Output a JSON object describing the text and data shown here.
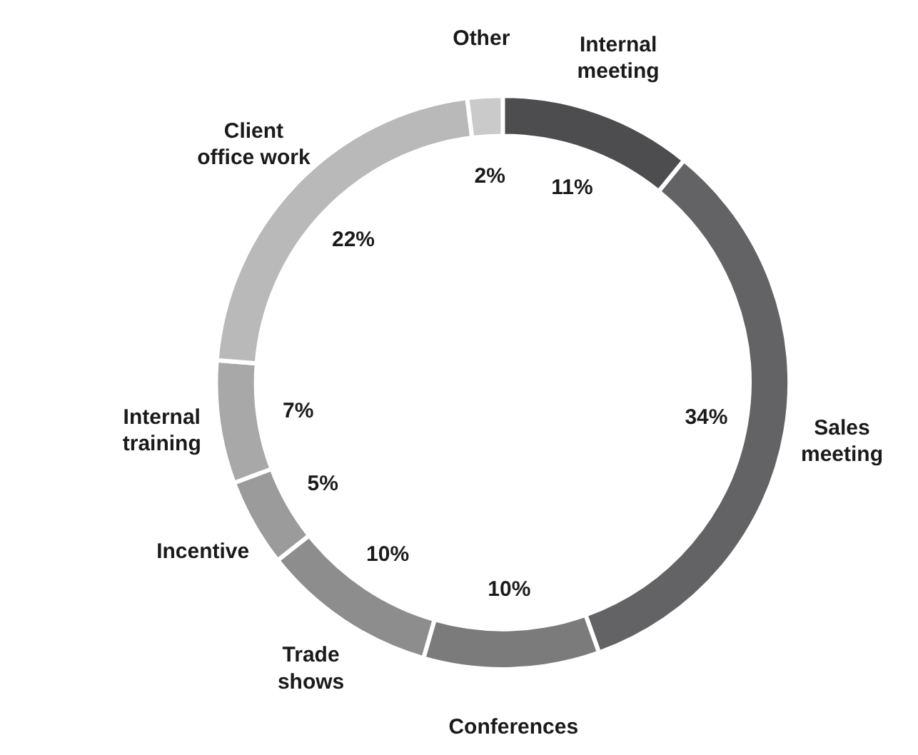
{
  "chart_data": {
    "type": "donut",
    "categories": [
      "Internal\nmeeting",
      "Sales\nmeeting",
      "Conferences",
      "Trade\nshows",
      "Incentive",
      "Internal\ntraining",
      "Client\noffice work",
      "Other"
    ],
    "values": [
      11,
      34,
      10,
      10,
      5,
      7,
      22,
      2
    ],
    "value_labels": [
      "11%",
      "34%",
      "10%",
      "10%",
      "5%",
      "7%",
      "22%",
      "2%"
    ],
    "colors": [
      "#4d4d4f",
      "#636365",
      "#7b7b7b",
      "#8d8d8d",
      "#9b9b9b",
      "#a8a8a8",
      "#b9b9b9",
      "#cacaca"
    ]
  }
}
